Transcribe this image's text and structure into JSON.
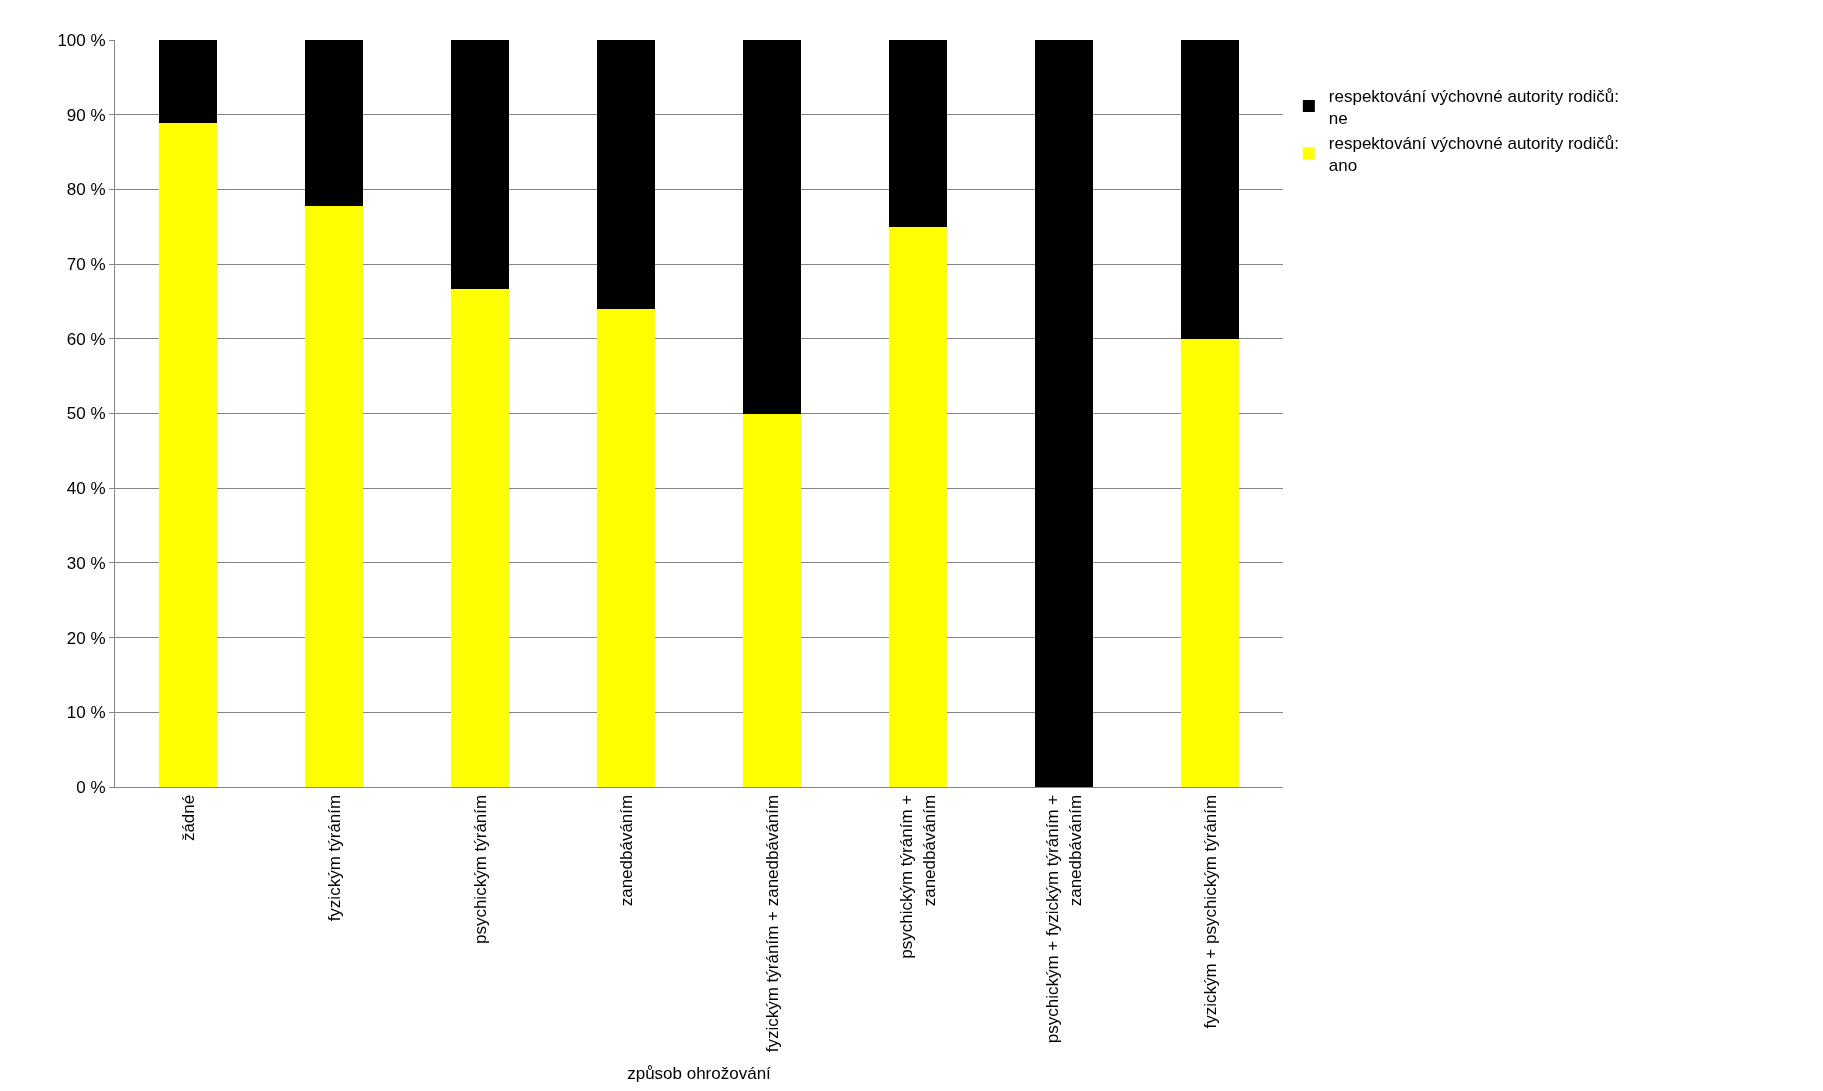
{
  "chart_data": {
    "type": "bar",
    "stacked": true,
    "xlabel": "způsob ohrožování",
    "categories": [
      "žádné",
      "fyzickým týráním",
      "psychickým týráním",
      "zanedbáváním",
      "fyzickým týráním + zanedbáváním",
      "psychickým týráním + zanedbáváním",
      "psychickým + fyzickým týráním + zanedbáváním",
      "fyzickým + psychickým týráním"
    ],
    "series": [
      {
        "name": "respektování výchovné autority rodičů: ano",
        "color": "#ffff00",
        "values": [
          88.9,
          77.8,
          66.7,
          64,
          50,
          75,
          0,
          60
        ]
      },
      {
        "name": "respektování výchovné autority rodičů: ne",
        "color": "#000000",
        "values": [
          11.1,
          22.2,
          33.3,
          36,
          50,
          25,
          100,
          40
        ]
      }
    ],
    "ylim": [
      0,
      100
    ],
    "yticks": [
      {
        "value": 0,
        "label": "0 %"
      },
      {
        "value": 10,
        "label": "10 %"
      },
      {
        "value": 20,
        "label": "20 %"
      },
      {
        "value": 30,
        "label": "30 %"
      },
      {
        "value": 40,
        "label": "40 %"
      },
      {
        "value": 50,
        "label": "50 %"
      },
      {
        "value": 60,
        "label": "60 %"
      },
      {
        "value": 70,
        "label": "70 %"
      },
      {
        "value": 80,
        "label": "80 %"
      },
      {
        "value": 90,
        "label": "90 %"
      },
      {
        "value": 100,
        "label": "100 %"
      }
    ],
    "grid": "y",
    "legend": "top right"
  }
}
